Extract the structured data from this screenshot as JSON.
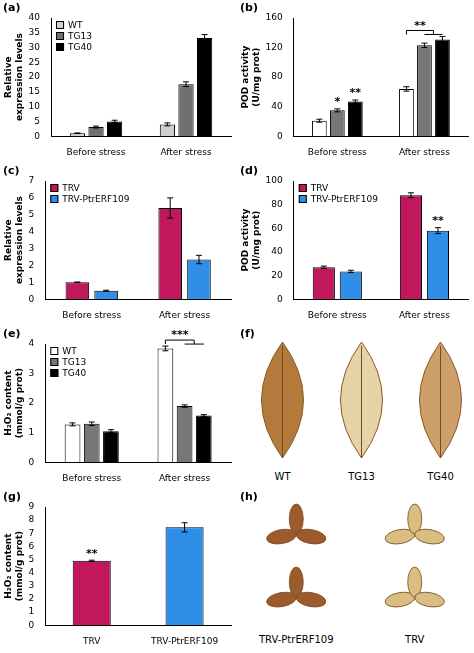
{
  "chart_data": [
    {
      "panel": "(a)",
      "type": "bar",
      "y_label": "Relative expression levels",
      "categories": [
        "Before stress",
        "After stress"
      ],
      "series": [
        {
          "name": "WT",
          "color": "#d0d0d0",
          "values": [
            1.0,
            4.0
          ],
          "errors": [
            0.1,
            0.5
          ]
        },
        {
          "name": "TG13",
          "color": "#707070",
          "values": [
            3.1,
            17.6
          ],
          "errors": [
            0.3,
            0.8
          ]
        },
        {
          "name": "TG40",
          "color": "#000000",
          "values": [
            5.0,
            33.2
          ],
          "errors": [
            0.4,
            1.2
          ]
        }
      ],
      "ylim": [
        0,
        40
      ],
      "yticks": [
        0,
        5,
        10,
        15,
        20,
        25,
        30,
        35,
        40
      ],
      "grid": false,
      "legend": "upper left",
      "annotations": []
    },
    {
      "panel": "(b)",
      "type": "bar",
      "y_label": "POD activity (U/mg prot)",
      "categories": [
        "Before stress",
        "After stress"
      ],
      "series": [
        {
          "name": "WT",
          "color": "#ffffff",
          "values": [
            21,
            64
          ],
          "errors": [
            2,
            3
          ]
        },
        {
          "name": "TG13",
          "color": "#777777",
          "values": [
            35,
            123
          ],
          "errors": [
            2,
            3
          ]
        },
        {
          "name": "TG40",
          "color": "#000000",
          "values": [
            47,
            131
          ],
          "errors": [
            2,
            4
          ]
        }
      ],
      "ylim": [
        0,
        160
      ],
      "yticks": [
        0,
        40,
        80,
        120,
        160
      ],
      "grid": false,
      "annotations": [
        {
          "text": "*",
          "category": "Before stress",
          "series": "TG13"
        },
        {
          "text": "**",
          "category": "Before stress",
          "series": "TG40"
        },
        {
          "text": "**",
          "category": "After stress",
          "bracket": [
            "WT",
            "TG13",
            "TG40"
          ]
        }
      ]
    },
    {
      "panel": "(c)",
      "type": "bar",
      "y_label": "Relative expression levels",
      "categories": [
        "Before stress",
        "After stress"
      ],
      "series": [
        {
          "name": "TRV",
          "color": "#c0175d",
          "values": [
            1.0,
            5.4
          ],
          "errors": [
            0.02,
            0.6
          ]
        },
        {
          "name": "TRV-PtrERF109",
          "color": "#2f8fe8",
          "values": [
            0.5,
            2.35
          ],
          "errors": [
            0.03,
            0.25
          ]
        }
      ],
      "ylim": [
        0,
        7
      ],
      "yticks": [
        0,
        1,
        2,
        3,
        4,
        5,
        6,
        7
      ],
      "grid": false,
      "legend": "upper left",
      "annotations": []
    },
    {
      "panel": "(d)",
      "type": "bar",
      "y_label": "POD activity (U/mg prot)",
      "categories": [
        "Before stress",
        "After stress"
      ],
      "series": [
        {
          "name": "TRV",
          "color": "#c0175d",
          "values": [
            27,
            88
          ],
          "errors": [
            1,
            2
          ]
        },
        {
          "name": "TRV-PtrERF109",
          "color": "#2f8fe8",
          "values": [
            23.5,
            58
          ],
          "errors": [
            1,
            2.5
          ]
        }
      ],
      "ylim": [
        0,
        100
      ],
      "yticks": [
        0,
        20,
        40,
        60,
        80,
        100
      ],
      "grid": false,
      "legend": "upper left",
      "annotations": [
        {
          "text": "**",
          "category": "After stress",
          "series": "TRV-PtrERF109"
        }
      ]
    },
    {
      "panel": "(e)",
      "type": "bar",
      "y_label": "H₂O₂ content (mmol/g prot)",
      "categories": [
        "Before stress",
        "After stress"
      ],
      "series": [
        {
          "name": "WT",
          "color": "#ffffff",
          "values": [
            1.28,
            3.85
          ],
          "errors": [
            0.05,
            0.08
          ]
        },
        {
          "name": "TG13",
          "color": "#777777",
          "values": [
            1.3,
            1.9
          ],
          "errors": [
            0.06,
            0.04
          ]
        },
        {
          "name": "TG40",
          "color": "#000000",
          "values": [
            1.05,
            1.58
          ],
          "errors": [
            0.05,
            0.03
          ]
        }
      ],
      "ylim": [
        0,
        4
      ],
      "yticks": [
        0,
        1,
        2,
        3,
        4
      ],
      "grid": false,
      "legend": "upper left",
      "annotations": [
        {
          "text": "***",
          "category": "After stress",
          "bracket": [
            "WT",
            "TG13",
            "TG40"
          ]
        }
      ]
    },
    {
      "panel": "(g)",
      "type": "bar",
      "y_label": "H₂O₂ content (mmol/g prot)",
      "categories": [
        "TRV",
        "TRV-PtrERF109"
      ],
      "values": [
        4.9,
        7.45
      ],
      "errors": [
        0.05,
        0.35
      ],
      "colors": [
        "#c0175d",
        "#2f8fe8"
      ],
      "ylim": [
        0,
        9
      ],
      "yticks": [
        0,
        1,
        2,
        3,
        4,
        5,
        6,
        7,
        8,
        9
      ],
      "grid": false,
      "annotations": [
        {
          "text": "**",
          "category": "TRV"
        }
      ]
    }
  ],
  "images": [
    {
      "panel": "(f)",
      "labels": [
        "WT",
        "TG13",
        "TG40"
      ]
    },
    {
      "panel": "(h)",
      "labels": [
        "TRV-PtrERF109",
        "TRV"
      ]
    }
  ]
}
